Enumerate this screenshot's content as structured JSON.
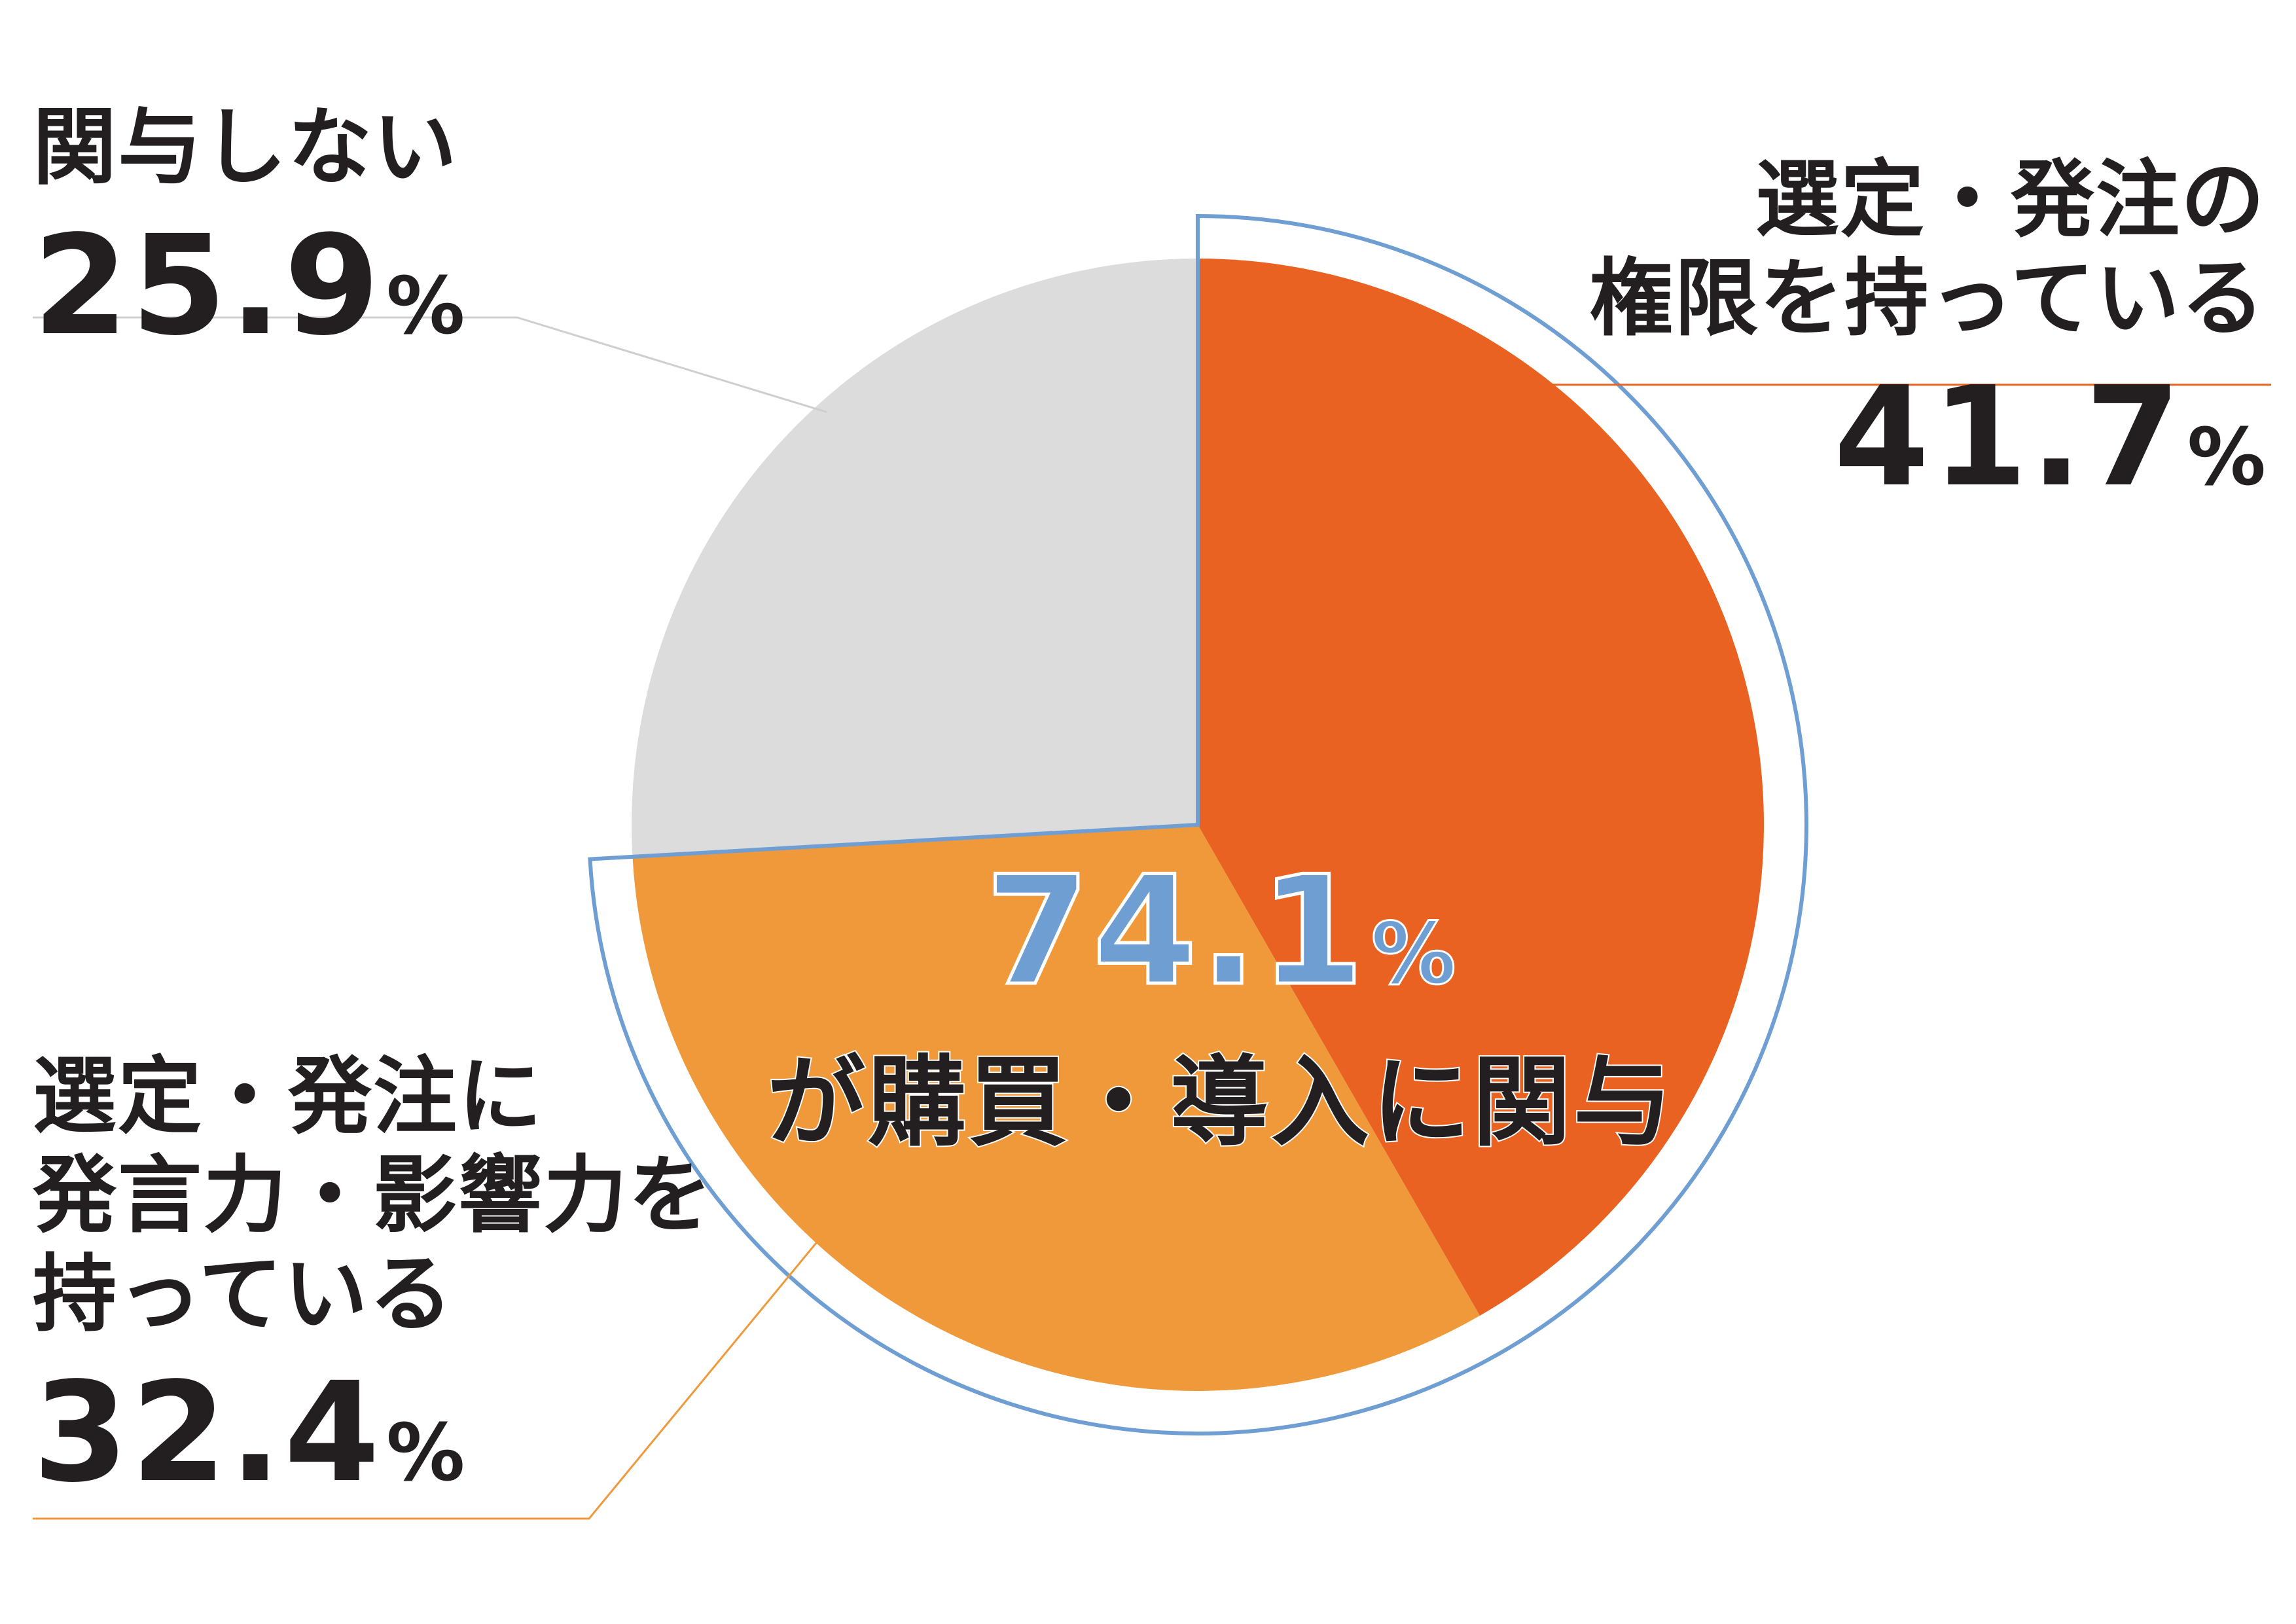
{
  "chart_data": {
    "type": "pie",
    "slices": [
      {
        "label": "選定・発注の権限を持っている",
        "value": 41.7,
        "color": "#e96221"
      },
      {
        "label": "選定・発注に発言力・影響力を持っている",
        "value": 32.4,
        "color": "#f0993b"
      },
      {
        "label": "関与しない",
        "value": 25.9,
        "color": "#dcdcdc"
      }
    ],
    "annotation": {
      "value": "74.1",
      "unit": "%",
      "caption": "が購買・導入に関与",
      "color": "#6f9ed3"
    },
    "start_angle": "12 o'clock",
    "direction": "clockwise"
  },
  "labels": {
    "slice0": {
      "line1": "選定・発注の",
      "line2": "権限を持っている",
      "value": "41.7",
      "unit": "%"
    },
    "slice1": {
      "line1": "選定・発注に",
      "line2": "発言力・影響力を",
      "line3": "持っている",
      "value": "32.4",
      "unit": "%"
    },
    "slice2": {
      "line1": "関与しない",
      "value": "25.9",
      "unit": "%"
    }
  }
}
